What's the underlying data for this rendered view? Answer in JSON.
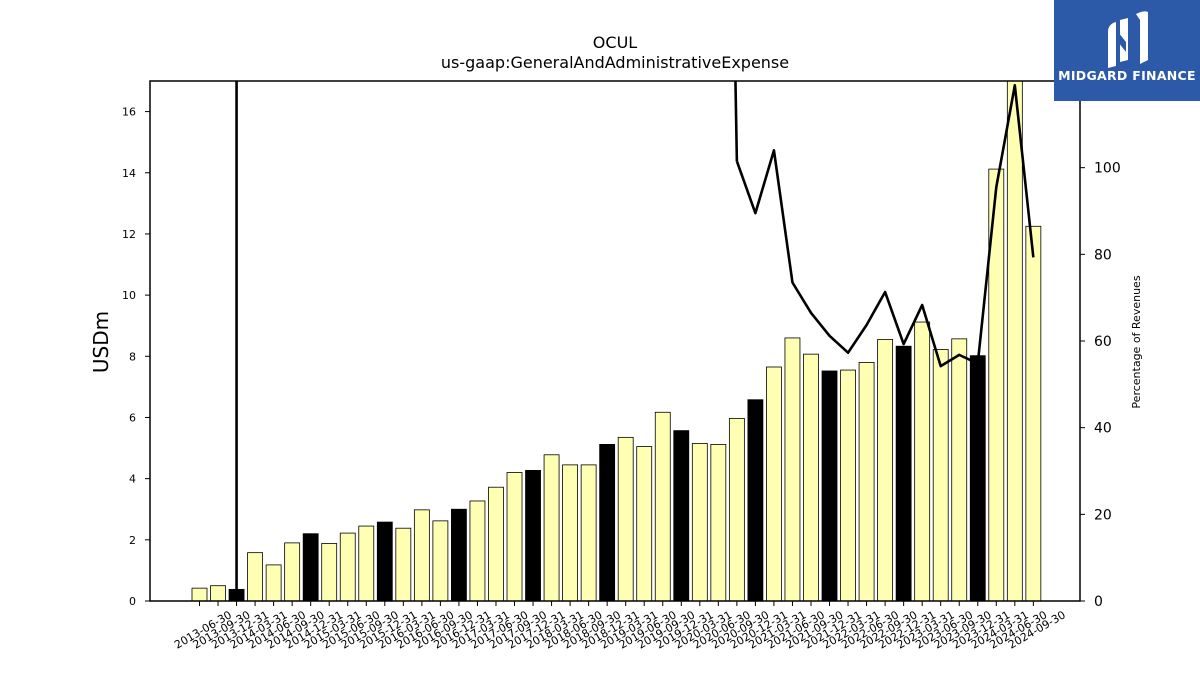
{
  "chart_data": {
    "type": "bar",
    "title": "OCUL",
    "subtitle": "us-gaap:GeneralAndAdministrativeExpense",
    "ylabel": "USDm",
    "y2label": "Percentage of Revenues",
    "ylim": [
      0,
      17
    ],
    "y2lim": [
      0,
      120
    ],
    "yticks": [
      0,
      2,
      4,
      6,
      8,
      10,
      12,
      14,
      16
    ],
    "y2ticks": [
      0,
      20,
      40,
      60,
      80,
      100
    ],
    "categories": [
      "2013-06-30",
      "2013-09-30",
      "2013-12-31",
      "2014-03-31",
      "2014-06-30",
      "2014-09-30",
      "2014-12-31",
      "2015-03-31",
      "2015-06-30",
      "2015-09-30",
      "2015-12-31",
      "2016-03-31",
      "2016-06-30",
      "2016-09-30",
      "2016-12-31",
      "2017-03-31",
      "2017-06-30",
      "2017-09-30",
      "2017-12-31",
      "2018-03-31",
      "2018-06-30",
      "2018-09-30",
      "2018-12-31",
      "2019-03-31",
      "2019-06-30",
      "2019-09-30",
      "2019-12-31",
      "2020-03-31",
      "2020-06-30",
      "2020-09-30",
      "2020-12-31",
      "2021-03-31",
      "2021-06-30",
      "2021-09-30",
      "2021-12-31",
      "2022-03-31",
      "2022-06-30",
      "2022-09-30",
      "2022-12-31",
      "2023-03-31",
      "2023-06-30",
      "2023-09-30",
      "2023-12-31",
      "2024-03-31",
      "2024-06-30",
      "2024-09-30"
    ],
    "series": [
      {
        "kind": "bar",
        "values": [
          0.42,
          0.5,
          0.38,
          1.58,
          1.18,
          1.9,
          2.2,
          1.88,
          2.22,
          2.45,
          2.58,
          2.38,
          2.98,
          2.62,
          3.0,
          3.27,
          3.72,
          4.2,
          4.27,
          4.78,
          4.45,
          4.45,
          5.12,
          5.35,
          5.05,
          6.17,
          5.57,
          5.15,
          5.12,
          5.97,
          6.58,
          7.65,
          8.6,
          8.07,
          7.52,
          7.55,
          7.8,
          8.55,
          8.33,
          9.12,
          8.22,
          8.57,
          8.02,
          14.12,
          17.0,
          12.25
        ],
        "highlight": [
          false,
          false,
          true,
          false,
          false,
          false,
          true,
          false,
          false,
          false,
          true,
          false,
          false,
          false,
          true,
          false,
          false,
          false,
          true,
          false,
          false,
          false,
          true,
          false,
          false,
          false,
          true,
          false,
          false,
          false,
          true,
          false,
          false,
          false,
          true,
          false,
          false,
          false,
          true,
          false,
          false,
          false,
          true,
          false,
          false,
          false
        ]
      },
      {
        "kind": "line",
        "axis": "right",
        "values": [
          null,
          null,
          null,
          null,
          null,
          null,
          null,
          null,
          null,
          null,
          null,
          null,
          null,
          null,
          null,
          null,
          null,
          null,
          null,
          null,
          null,
          null,
          null,
          null,
          null,
          null,
          null,
          null,
          null,
          101.5,
          89.5,
          104,
          73.5,
          66.5,
          61.2,
          57.3,
          63.7,
          71.3,
          59.3,
          68.3,
          54.2,
          56.8,
          54.8,
          95.5,
          119,
          79.3
        ]
      }
    ],
    "colors": {
      "bar": "#ffffb3",
      "bar_highlight": "#000000",
      "line": "#000000"
    }
  },
  "logo": {
    "text": "MIDGARD FINANCE",
    "background": "#2d5aa8"
  }
}
